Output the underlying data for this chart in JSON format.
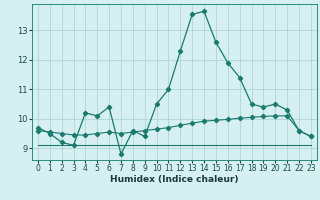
{
  "xlabel": "Humidex (Indice chaleur)",
  "background_color": "#d6eff1",
  "grid_color": "#aed4d8",
  "line_color": "#1a7a6e",
  "xlim": [
    -0.5,
    23.5
  ],
  "ylim": [
    8.6,
    13.9
  ],
  "xticks": [
    0,
    1,
    2,
    3,
    4,
    5,
    6,
    7,
    8,
    9,
    10,
    11,
    12,
    13,
    14,
    15,
    16,
    17,
    18,
    19,
    20,
    21,
    22,
    23
  ],
  "yticks": [
    9,
    10,
    11,
    12,
    13
  ],
  "series1_x": [
    0,
    1,
    2,
    3,
    4,
    5,
    6,
    7,
    8,
    9,
    10,
    11,
    12,
    13,
    14,
    15,
    16,
    17,
    18,
    19,
    20,
    21,
    22,
    23
  ],
  "series1_y": [
    9.7,
    9.5,
    9.2,
    9.1,
    10.2,
    10.1,
    10.4,
    8.8,
    9.6,
    9.4,
    10.5,
    11.0,
    12.3,
    13.55,
    13.65,
    12.6,
    11.9,
    11.4,
    10.5,
    10.4,
    10.5,
    10.3,
    9.6,
    9.4
  ],
  "series2_x": [
    0,
    1,
    2,
    3,
    4,
    5,
    6,
    7,
    8,
    9,
    10,
    11,
    12,
    13,
    14,
    15,
    16,
    17,
    18,
    19,
    20,
    21,
    22,
    23
  ],
  "series2_y": [
    9.6,
    9.55,
    9.5,
    9.45,
    9.45,
    9.5,
    9.55,
    9.5,
    9.55,
    9.6,
    9.65,
    9.7,
    9.78,
    9.85,
    9.92,
    9.95,
    9.98,
    10.02,
    10.05,
    10.08,
    10.1,
    10.1,
    9.6,
    9.4
  ],
  "series3_x": [
    0,
    1,
    2,
    3,
    4,
    5,
    6,
    7,
    8,
    9,
    10,
    11,
    12,
    13,
    14,
    15,
    16,
    17,
    18,
    19,
    20,
    21,
    22,
    23
  ],
  "series3_y": [
    9.1,
    9.1,
    9.1,
    9.1,
    9.1,
    9.1,
    9.1,
    9.1,
    9.1,
    9.1,
    9.1,
    9.1,
    9.1,
    9.1,
    9.1,
    9.1,
    9.1,
    9.1,
    9.1,
    9.1,
    9.1,
    9.1,
    9.1,
    9.1
  ]
}
